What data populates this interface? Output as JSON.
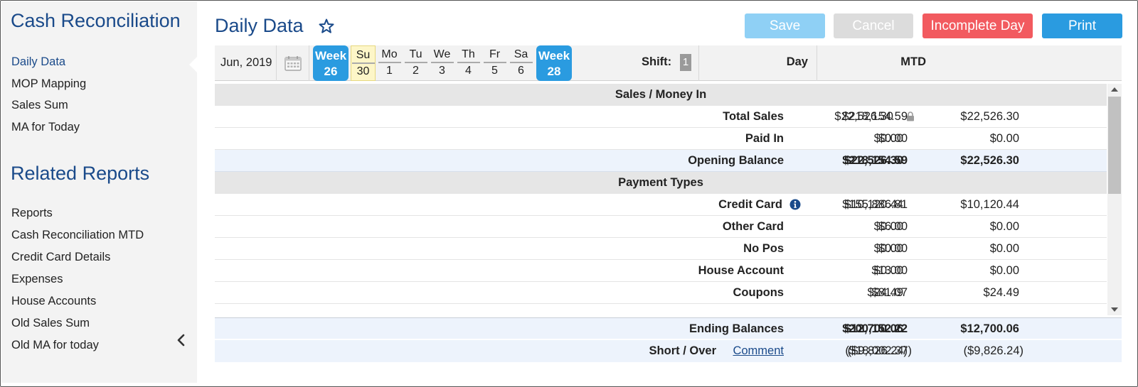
{
  "sidebar": {
    "title": "Cash Reconciliation",
    "items": [
      "Daily Data",
      "MOP Mapping",
      "Sales Sum",
      "MA for Today"
    ],
    "related_title": "Related Reports",
    "related_items": [
      "Reports",
      "Cash Reconciliation MTD",
      "Credit Card Details",
      "Expenses",
      "House Accounts",
      "Old Sales Sum",
      "Old MA for today"
    ]
  },
  "header": {
    "title": "Daily Data",
    "buttons": {
      "save": "Save",
      "cancel": "Cancel",
      "incomplete": "Incomplete Day",
      "print": "Print"
    }
  },
  "datebar": {
    "month": "Jun, 2019",
    "week_prev": {
      "label": "Week",
      "num": "26"
    },
    "days": [
      {
        "name": "Su",
        "date": "30"
      },
      {
        "name": "Mo",
        "date": "1"
      },
      {
        "name": "Tu",
        "date": "2"
      },
      {
        "name": "We",
        "date": "3"
      },
      {
        "name": "Th",
        "date": "4"
      },
      {
        "name": "Fr",
        "date": "5"
      },
      {
        "name": "Sa",
        "date": "6"
      }
    ],
    "week_next": {
      "label": "Week",
      "num": "28"
    },
    "shift_label": "Shift:",
    "shift_value": "1",
    "col_day": "Day",
    "col_mtd": "MTD"
  },
  "table": {
    "section1": "Sales / Money In",
    "total_sales": {
      "label": "Total Sales",
      "shift": "$22,526.30",
      "day": "$22,526.30",
      "mtd": "$218,154.59"
    },
    "paid_in": {
      "label": "Paid In",
      "shift": "$0.00",
      "day": "$0.00",
      "mtd": "$0.00"
    },
    "opening_balance": {
      "label": "Opening Balance",
      "shift": "$22,526.30",
      "day": "$22,526.30",
      "mtd": "$218,154.59"
    },
    "section2": "Payment Types",
    "credit_card": {
      "label": "Credit Card",
      "shift": "$10,120.44",
      "day": "$10,120.44",
      "mtd": "$155,886.81"
    },
    "other_card": {
      "label": "Other Card",
      "shift": "$0.00",
      "day": "$0.00",
      "mtd": "$6.00"
    },
    "no_pos": {
      "label": "No Pos",
      "shift": "$0.00",
      "day": "$0.00",
      "mtd": "$0.00"
    },
    "house_account": {
      "label": "House Account",
      "shift": "$0.00",
      "day": "$0.00",
      "mtd": "$13.00"
    },
    "coupons": {
      "label": "Coupons",
      "shift": "$24.49",
      "day": "$24.49",
      "mtd": "$81.07"
    }
  },
  "footer": {
    "ending": {
      "label": "Ending Balances",
      "shift": "$12,700.06",
      "day": "$12,700.06",
      "mtd": "$200,152.22"
    },
    "short": {
      "label": "Short / Over",
      "comment": "Comment",
      "shift": "($9,826.24)",
      "day": "($9,826.24)",
      "mtd": "($18,002.37)"
    }
  },
  "icons": {
    "star": "star-outline-icon",
    "calendar": "calendar-icon",
    "lock": "lock-icon",
    "info": "info-icon",
    "collapse": "chevron-left-icon"
  },
  "colors": {
    "brand": "#1a4a8a",
    "save": "#8fd0f5",
    "cancel": "#dcdcdc",
    "incomplete": "#f25a5f",
    "print": "#2a9be0",
    "week": "#2a9be0",
    "selected_day": "#fdf6c8"
  }
}
